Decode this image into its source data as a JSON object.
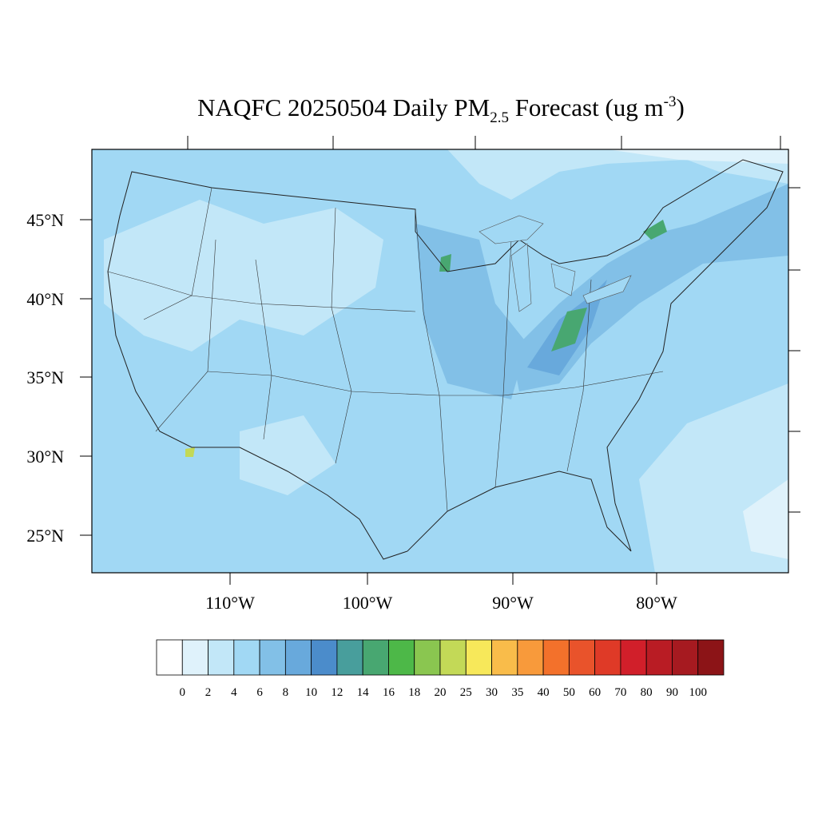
{
  "title": {
    "main": "NAQFC 20250504 Daily PM",
    "subscript": "2.5",
    "after": " Forecast (ug m",
    "superscript": "-3",
    "close": ")"
  },
  "latitude_labels": [
    "45°N",
    "40°N",
    "35°N",
    "30°N",
    "25°N"
  ],
  "longitude_labels": [
    "110°W",
    "100°W",
    "90°W",
    "80°W"
  ],
  "colorbar": {
    "levels": [
      0,
      2,
      4,
      6,
      8,
      10,
      12,
      14,
      16,
      18,
      20,
      25,
      30,
      35,
      40,
      50,
      60,
      70,
      80,
      90,
      100
    ],
    "colors": [
      "#ffffff",
      "#dff2fb",
      "#c2e7f8",
      "#a1d8f4",
      "#82c0e7",
      "#68a9dc",
      "#4b8ccb",
      "#489e9c",
      "#48a771",
      "#4db848",
      "#8ac650",
      "#c3d957",
      "#f7e85a",
      "#f9bc4a",
      "#f89a3b",
      "#f3712b",
      "#e9532b",
      "#df3a27",
      "#d11f2a",
      "#b91c24",
      "#a61a20",
      "#8c1417"
    ]
  }
}
